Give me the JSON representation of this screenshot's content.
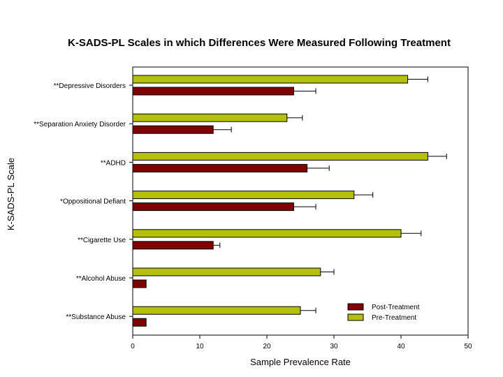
{
  "chart_data": {
    "type": "bar",
    "orientation": "horizontal",
    "title": "K-SADS-PL Scales in which Differences Were Measured Following Treatment",
    "xlabel": "Sample Prevalence Rate",
    "ylabel": "K-SADS-PL Scale",
    "xlim": [
      0,
      50
    ],
    "xticks": [
      "0",
      "10",
      "20",
      "30",
      "40",
      "50"
    ],
    "categories": [
      "**Depressive Disorders",
      "**Separation Anxiety Disorder",
      "**ADHD",
      "*Oppositional Defiant",
      "**Cigarette Use",
      "**Alcohol Abuse",
      "**Substance Abuse"
    ],
    "series": [
      {
        "name": "Pre-Treatment",
        "color": "#b5c00d",
        "values": [
          41,
          23,
          44,
          33,
          40,
          28,
          25
        ],
        "errors": [
          3,
          2.3,
          2.8,
          2.8,
          3,
          2,
          2.3
        ]
      },
      {
        "name": "Post-Treatment",
        "color": "#800000",
        "values": [
          24,
          12,
          26,
          24,
          12,
          2,
          2
        ],
        "errors": [
          3.3,
          2.7,
          3.3,
          3.3,
          1,
          0,
          0
        ]
      }
    ],
    "legend": [
      {
        "label": "Post-Treatment",
        "color": "#800000"
      },
      {
        "label": "Pre-Treatment",
        "color": "#b5c00d"
      }
    ],
    "legend_position": "bottom-right",
    "grid": false
  }
}
